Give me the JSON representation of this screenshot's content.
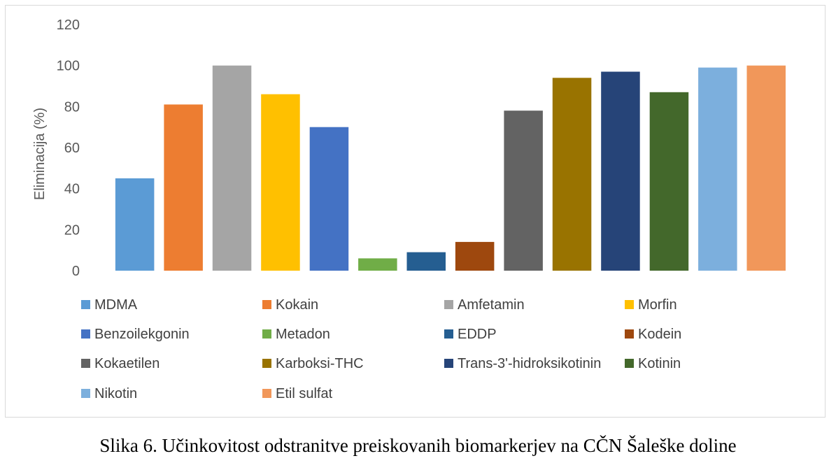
{
  "caption": "Slika 6. Učinkovitost odstranitve preiskovanih biomarkerjev na CČN Šaleške doline",
  "chart_data": {
    "type": "bar",
    "ylabel": "Eliminacija (%)",
    "xlabel": "",
    "ylim": [
      0,
      120
    ],
    "yticks": [
      0,
      20,
      40,
      60,
      80,
      100,
      120
    ],
    "grid": false,
    "legend_position": "bottom",
    "series": [
      {
        "name": "MDMA",
        "value": 45,
        "color": "#5B9BD5"
      },
      {
        "name": "Kokain",
        "value": 81,
        "color": "#ED7D31"
      },
      {
        "name": "Amfetamin",
        "value": 100,
        "color": "#A5A5A5"
      },
      {
        "name": "Morfin",
        "value": 86,
        "color": "#FFC000"
      },
      {
        "name": "Benzoilekgonin",
        "value": 70,
        "color": "#4472C4"
      },
      {
        "name": "Metadon",
        "value": 6,
        "color": "#70AD47"
      },
      {
        "name": "EDDP",
        "value": 9,
        "color": "#255E91"
      },
      {
        "name": "Kodein",
        "value": 14,
        "color": "#9E480E"
      },
      {
        "name": "Kokaetilen",
        "value": 78,
        "color": "#636363"
      },
      {
        "name": "Karboksi-THC",
        "value": 94,
        "color": "#997300"
      },
      {
        "name": "Trans-3'-hidroksikotinin",
        "value": 97,
        "color": "#264478"
      },
      {
        "name": "Kotinin",
        "value": 87,
        "color": "#43682B"
      },
      {
        "name": "Nikotin",
        "value": 99,
        "color": "#7CAFDD"
      },
      {
        "name": "Etil sulfat",
        "value": 100,
        "color": "#F1975A"
      }
    ]
  }
}
